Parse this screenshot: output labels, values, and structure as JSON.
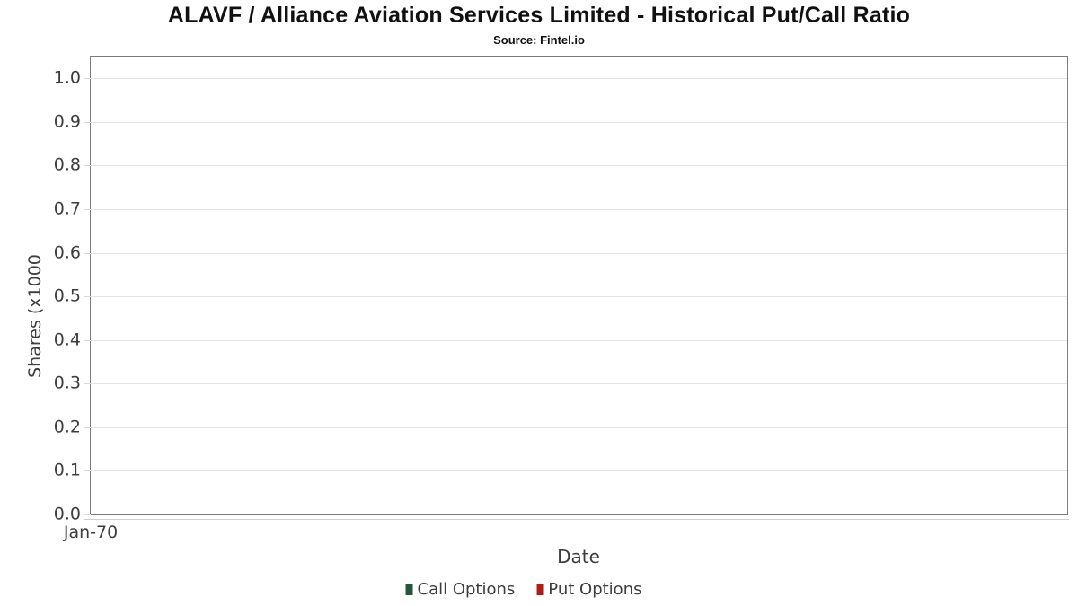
{
  "header": {
    "title": "ALAVF / Alliance Aviation Services Limited - Historical Put/Call Ratio",
    "subtitle": "Source: Fintel.io"
  },
  "chart_data": {
    "type": "line",
    "title": "ALAVF / Alliance Aviation Services Limited - Historical Put/Call Ratio",
    "subtitle": "Source: Fintel.io",
    "xlabel": "Date",
    "ylabel": "Shares (x1000",
    "ylim": [
      0.0,
      1.05
    ],
    "yticks": [
      0.0,
      0.1,
      0.2,
      0.3,
      0.4,
      0.5,
      0.6,
      0.7,
      0.8,
      0.9,
      1.0
    ],
    "ytick_labels": [
      "0.0",
      "0.1",
      "0.2",
      "0.3",
      "0.4",
      "0.5",
      "0.6",
      "0.7",
      "0.8",
      "0.9",
      "1.0"
    ],
    "xtick_labels": [
      "Jan-70"
    ],
    "grid": "horizontal",
    "legend_position": "bottom",
    "plot_border_color": "#7b7b7b",
    "gridline_color": "#e4e4e4",
    "series": [
      {
        "name": "Call Options",
        "color": "#26573c",
        "x": [],
        "y": []
      },
      {
        "name": "Put Options",
        "color": "#b31b18",
        "x": [],
        "y": []
      }
    ]
  }
}
